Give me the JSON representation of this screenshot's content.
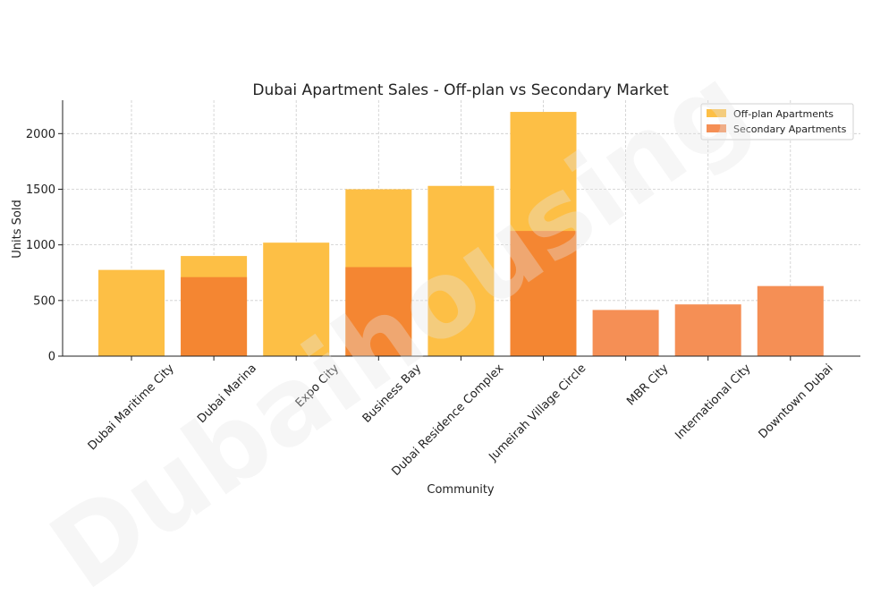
{
  "watermark_text": "Dubaihousing",
  "chart_data": {
    "type": "bar",
    "title": "Dubai Apartment Sales - Off-plan vs Secondary Market",
    "xlabel": "Community",
    "ylabel": "Units Sold",
    "ylim": [
      0,
      2300
    ],
    "yticks": [
      0,
      500,
      1000,
      1500,
      2000
    ],
    "grid": true,
    "legend_position": "top-right",
    "categories": [
      "Dubai Maritime City",
      "Dubai Marina",
      "Expo City",
      "Business Bay",
      "Dubai Residence Complex",
      "Jumeirah Village Circle",
      "MBR City",
      "International City",
      "Downtown Dubai"
    ],
    "series": [
      {
        "name": "Off-plan Apartments",
        "color": "#fdbf45",
        "values": [
          775,
          900,
          1020,
          1500,
          1530,
          2195,
          null,
          null,
          null
        ]
      },
      {
        "name": "Secondary Apartments",
        "color": "#f58f55",
        "values": [
          null,
          710,
          null,
          800,
          null,
          1125,
          415,
          465,
          630
        ]
      }
    ],
    "overlap_color": "#f48632"
  }
}
